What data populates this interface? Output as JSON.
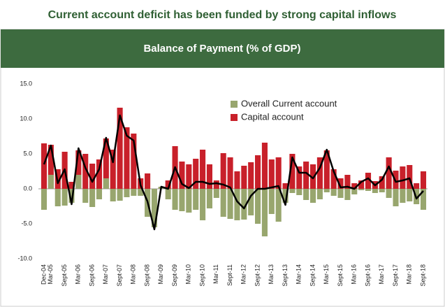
{
  "heading": "Current account deficit has been funded by strong capital inflows",
  "chart_data": {
    "type": "bar",
    "title": "Balance of Payment (% of GDP)",
    "categories": [
      "Dec-04",
      "Mar-05",
      null,
      "Sept-05",
      null,
      "Mar-06",
      null,
      "Sept-06",
      null,
      "Mar-07",
      null,
      "Sept-07",
      null,
      "Mar-08",
      null,
      "Sept-08",
      null,
      "Mar-09",
      null,
      "Sept-09",
      null,
      "Mar-10",
      null,
      "Sept-10",
      null,
      "Mar-11",
      null,
      "Sept-11",
      null,
      "Mar-12",
      null,
      "Sept-12",
      null,
      "Mar-13",
      null,
      "Sept-13",
      null,
      "Mar-14",
      null,
      "Sept-14",
      null,
      "Mar-15",
      null,
      "Sept-15",
      null,
      "Mar-16",
      null,
      "Sept-16",
      null,
      "Mar-17",
      null,
      "Sept-17",
      null,
      "Mar-18",
      null,
      "Sept-18"
    ],
    "series": [
      {
        "name": "Overall Current account",
        "color": "#98a66e",
        "values": [
          -3.0,
          2.0,
          -2.5,
          -2.4,
          -2.0,
          2.0,
          -2.0,
          -2.6,
          -1.5,
          1.5,
          -1.8,
          -1.7,
          -1.2,
          -1.0,
          -1.0,
          -4.0,
          -5.5,
          0.3,
          -1.5,
          -3.0,
          -3.2,
          -3.4,
          -3.0,
          -4.5,
          -2.8,
          -1.3,
          -4.0,
          -4.3,
          -4.5,
          -4.4,
          -3.8,
          -5.0,
          -6.8,
          -3.6,
          -4.7,
          -2.0,
          -0.6,
          -0.9,
          -1.6,
          -2.0,
          -1.5,
          -0.5,
          -1.0,
          -1.3,
          -1.6,
          -0.8,
          -0.2,
          -0.3,
          -0.6,
          -0.5,
          -1.3,
          -2.5,
          -2.0,
          -1.8,
          -2.2,
          -3.0
        ]
      },
      {
        "name": "Capital account",
        "color": "#c8202a",
        "values": [
          6.5,
          6.3,
          2.8,
          5.3,
          1.0,
          5.5,
          5.0,
          3.6,
          4.2,
          7.2,
          5.6,
          11.6,
          8.8,
          7.9,
          1.5,
          2.2,
          0,
          0.2,
          1.2,
          6.1,
          3.9,
          3.5,
          4.3,
          5.6,
          3.5,
          1.2,
          5.1,
          4.5,
          2.5,
          3.3,
          3.8,
          4.8,
          6.6,
          4.2,
          4.5,
          0.8,
          5.0,
          3.2,
          3.9,
          3.5,
          4.5,
          5.5,
          2.8,
          1.5,
          2.0,
          0.8,
          1.2,
          2.3,
          1.1,
          1.8,
          4.5,
          2.6,
          3.2,
          3.4,
          0.8,
          2.5
        ]
      },
      {
        "type": "line",
        "color": "#000000",
        "values": [
          3.5,
          6.2,
          0.8,
          2.8,
          -2.2,
          5.8,
          3.0,
          1.0,
          2.8,
          7.3,
          3.8,
          10.5,
          7.6,
          6.9,
          0.5,
          -1.8,
          -5.8,
          0.3,
          0.0,
          3.1,
          0.7,
          0.1,
          1.0,
          1.0,
          0.7,
          0.8,
          0.6,
          0.2,
          -1.8,
          -2.8,
          -1.0,
          0.0,
          0.0,
          0.2,
          0.4,
          -2.3,
          4.5,
          2.3,
          2.3,
          1.5,
          3.0,
          5.6,
          2.5,
          0.2,
          0.3,
          0.0,
          1.0,
          1.5,
          0.5,
          1.3,
          3.2,
          1.0,
          1.2,
          1.5,
          -1.4,
          -0.3
        ]
      }
    ],
    "ylim": [
      -10,
      15
    ],
    "yticks": [
      {
        "value": -10,
        "label": "-10.0"
      },
      {
        "value": -5,
        "label": "-5.0"
      },
      {
        "value": 0,
        "label": "0.0"
      },
      {
        "value": 5,
        "label": "5.0"
      },
      {
        "value": 10,
        "label": "10.0"
      },
      {
        "value": 15,
        "label": "15.0"
      }
    ],
    "grid": false
  }
}
